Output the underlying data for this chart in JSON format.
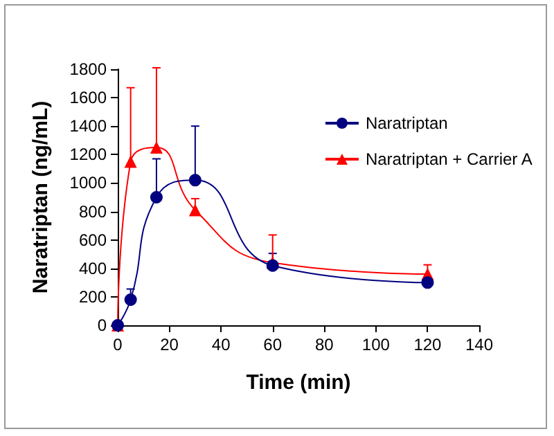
{
  "chart_data": {
    "type": "line",
    "xlabel": "Time (min)",
    "ylabel": "Naratriptan (ng/mL)",
    "xlim": [
      0,
      140
    ],
    "xticks": [
      0,
      20,
      40,
      60,
      80,
      100,
      120,
      140
    ],
    "ylim": [
      0,
      1800
    ],
    "yticks": [
      0,
      200,
      400,
      600,
      800,
      1000,
      1200,
      1400,
      1600,
      1800
    ],
    "grid": false,
    "legend": "right",
    "series": [
      {
        "name": "Naratriptan",
        "color": "#000080",
        "marker": "circle",
        "x": [
          0,
          5,
          15,
          30,
          60,
          120
        ],
        "values": [
          0,
          180,
          900,
          1020,
          420,
          300
        ],
        "errors": [
          null,
          [
            180,
            255
          ],
          [
            900,
            1170
          ],
          [
            1020,
            1400
          ],
          [
            420,
            505
          ],
          null
        ]
      },
      {
        "name": "Naratriptan + Carrier A",
        "color": "#ff0000",
        "marker": "triangle",
        "x": [
          0,
          5,
          15,
          30,
          60,
          120
        ],
        "values": [
          0,
          1150,
          1250,
          810,
          440,
          360
        ],
        "errors": [
          null,
          [
            1150,
            1670
          ],
          [
            1250,
            1810
          ],
          [
            810,
            890
          ],
          [
            440,
            635
          ],
          [
            360,
            425
          ]
        ]
      }
    ]
  }
}
